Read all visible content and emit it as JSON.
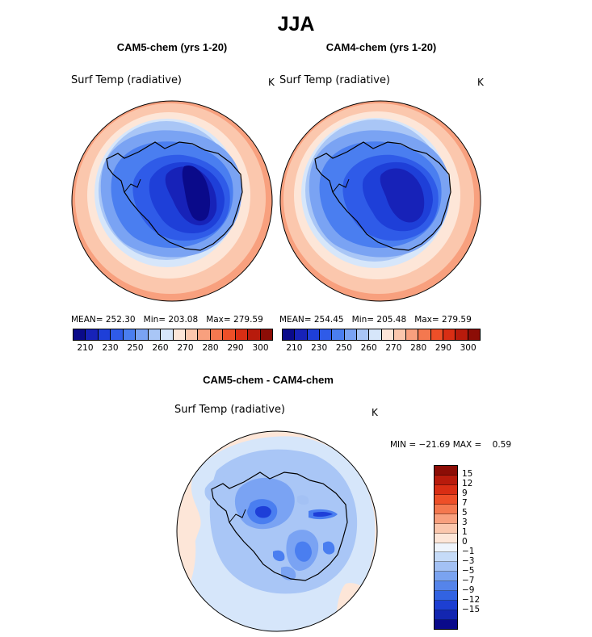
{
  "title": "JJA",
  "panels": {
    "left": {
      "title": "CAM5-chem (yrs 1-20)",
      "variable": "Surf Temp (radiative)",
      "units": "K",
      "mean_label": "MEAN=",
      "mean": "252.30",
      "min_label": "Min=",
      "min": "203.08",
      "max_label": "Max=",
      "max": "279.59"
    },
    "right": {
      "title": "CAM4-chem (yrs 1-20)",
      "variable": "Surf Temp (radiative)",
      "units": "K",
      "mean_label": "MEAN=",
      "mean": "254.45",
      "min_label": "Min=",
      "min": "205.48",
      "max_label": "Max=",
      "max": "279.59"
    },
    "diff": {
      "title": "CAM5-chem - CAM4-chem",
      "variable": "Surf Temp (radiative)",
      "units": "K",
      "min_label": "MIN =",
      "min": "−21.69",
      "max_label": "MAX =",
      "max": "0.59"
    }
  },
  "abs_colorbar": {
    "tick_labels": [
      "210",
      "230",
      "250",
      "260",
      "270",
      "280",
      "290",
      "300"
    ],
    "colors": [
      "#0a0a8a",
      "#1722b8",
      "#1e3fd8",
      "#2f5be8",
      "#4a7ef0",
      "#7aa3f3",
      "#a9c6f6",
      "#d6e6fa",
      "#fde6d8",
      "#fbc7ad",
      "#f8a07e",
      "#f4784f",
      "#ee4f28",
      "#d92e14",
      "#b81b0c",
      "#8c0d06"
    ]
  },
  "diff_colorbar": {
    "tick_labels": [
      "15",
      "12",
      "9",
      "7",
      "5",
      "3",
      "1",
      "0",
      "−1",
      "−3",
      "−5",
      "−7",
      "−9",
      "−12",
      "−15"
    ],
    "colors": [
      "#8c0d06",
      "#b81b0c",
      "#d92e14",
      "#ee4f28",
      "#f4784f",
      "#f8a07e",
      "#fbc7ad",
      "#fde6d8",
      "#eef4fc",
      "#c5dbf8",
      "#a3c1f4",
      "#7aa3f0",
      "#5584ea",
      "#3263e2",
      "#1d3fd2",
      "#1326b0",
      "#0a0a8a"
    ]
  }
}
